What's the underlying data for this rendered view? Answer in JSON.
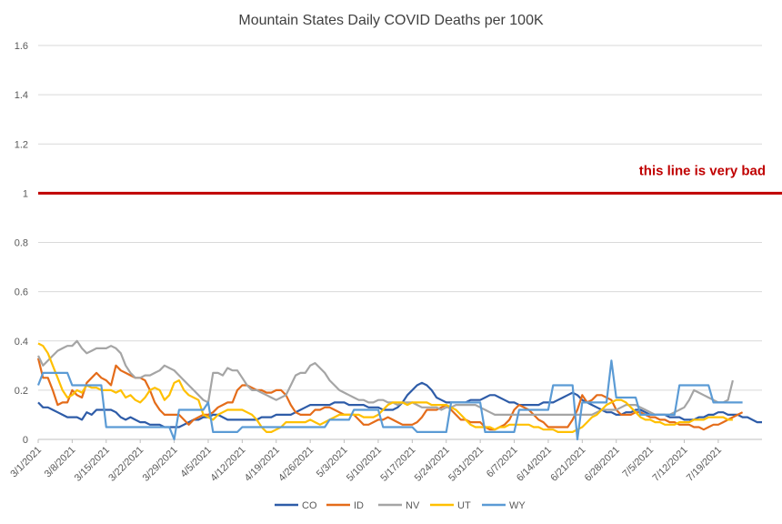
{
  "chart_data": {
    "type": "line",
    "title": "Mountain States Daily COVID Deaths per 100K",
    "xlabel": "",
    "ylabel": "",
    "ylim": [
      0,
      1.6
    ],
    "yticks": [
      0,
      0.2,
      0.4,
      0.6,
      0.8,
      1,
      1.2,
      1.4,
      1.6
    ],
    "grid": true,
    "legend": "bottom",
    "x_start": "3/1/2021",
    "x_tick_labels": [
      "3/1/2021",
      "3/8/2021",
      "3/15/2021",
      "3/22/2021",
      "3/29/2021",
      "4/5/2021",
      "4/12/2021",
      "4/19/2021",
      "4/26/2021",
      "5/3/2021",
      "5/10/2021",
      "5/17/2021",
      "5/24/2021",
      "5/31/2021",
      "6/7/2021",
      "6/14/2021",
      "6/21/2021",
      "6/28/2021",
      "7/5/2021",
      "7/12/2021",
      "7/19/2021"
    ],
    "reference_line": {
      "y": 1,
      "label": "this line is very bad",
      "color": "#c00000"
    },
    "series": [
      {
        "name": "CO",
        "color": "#2e5ca8",
        "values": [
          0.15,
          0.13,
          0.13,
          0.12,
          0.11,
          0.1,
          0.09,
          0.09,
          0.09,
          0.08,
          0.11,
          0.1,
          0.12,
          0.12,
          0.12,
          0.12,
          0.11,
          0.09,
          0.08,
          0.09,
          0.08,
          0.07,
          0.07,
          0.06,
          0.06,
          0.06,
          0.05,
          0.05,
          0.05,
          0.05,
          0.06,
          0.07,
          0.08,
          0.08,
          0.09,
          0.09,
          0.1,
          0.1,
          0.09,
          0.08,
          0.08,
          0.08,
          0.08,
          0.08,
          0.08,
          0.08,
          0.09,
          0.09,
          0.09,
          0.1,
          0.1,
          0.1,
          0.1,
          0.11,
          0.12,
          0.13,
          0.14,
          0.14,
          0.14,
          0.14,
          0.14,
          0.15,
          0.15,
          0.15,
          0.14,
          0.14,
          0.14,
          0.14,
          0.13,
          0.13,
          0.13,
          0.12,
          0.12,
          0.12,
          0.13,
          0.15,
          0.18,
          0.2,
          0.22,
          0.23,
          0.22,
          0.2,
          0.17,
          0.16,
          0.15,
          0.15,
          0.15,
          0.15,
          0.15,
          0.16,
          0.16,
          0.16,
          0.17,
          0.18,
          0.18,
          0.17,
          0.16,
          0.15,
          0.15,
          0.14,
          0.14,
          0.14,
          0.14,
          0.14,
          0.15,
          0.15,
          0.15,
          0.16,
          0.17,
          0.18,
          0.19,
          0.18,
          0.16,
          0.15,
          0.14,
          0.13,
          0.12,
          0.11,
          0.11,
          0.1,
          0.1,
          0.11,
          0.11,
          0.12,
          0.12,
          0.11,
          0.1,
          0.1,
          0.1,
          0.1,
          0.09,
          0.09,
          0.09,
          0.08,
          0.08,
          0.08,
          0.09,
          0.09,
          0.1,
          0.1,
          0.11,
          0.11,
          0.1,
          0.1,
          0.1,
          0.09,
          0.09,
          0.08,
          0.07,
          0.07
        ]
      },
      {
        "name": "ID",
        "color": "#e46c1a",
        "values": [
          0.33,
          0.25,
          0.25,
          0.2,
          0.14,
          0.15,
          0.15,
          0.2,
          0.18,
          0.17,
          0.23,
          0.25,
          0.27,
          0.25,
          0.24,
          0.22,
          0.3,
          0.28,
          0.27,
          0.26,
          0.25,
          0.25,
          0.24,
          0.2,
          0.15,
          0.12,
          0.1,
          0.1,
          0.1,
          0.1,
          0.08,
          0.06,
          0.08,
          0.09,
          0.1,
          0.1,
          0.11,
          0.13,
          0.14,
          0.15,
          0.15,
          0.2,
          0.22,
          0.22,
          0.21,
          0.2,
          0.2,
          0.19,
          0.19,
          0.2,
          0.2,
          0.18,
          0.14,
          0.11,
          0.1,
          0.1,
          0.1,
          0.12,
          0.12,
          0.13,
          0.13,
          0.12,
          0.11,
          0.1,
          0.1,
          0.1,
          0.08,
          0.06,
          0.06,
          0.07,
          0.08,
          0.08,
          0.09,
          0.08,
          0.07,
          0.06,
          0.06,
          0.06,
          0.07,
          0.09,
          0.12,
          0.12,
          0.12,
          0.13,
          0.14,
          0.12,
          0.1,
          0.08,
          0.08,
          0.07,
          0.07,
          0.07,
          0.05,
          0.04,
          0.04,
          0.05,
          0.06,
          0.08,
          0.12,
          0.14,
          0.13,
          0.12,
          0.1,
          0.08,
          0.07,
          0.05,
          0.05,
          0.05,
          0.05,
          0.05,
          0.08,
          0.12,
          0.18,
          0.15,
          0.16,
          0.18,
          0.18,
          0.17,
          0.16,
          0.12,
          0.1,
          0.1,
          0.1,
          0.11,
          0.11,
          0.1,
          0.09,
          0.09,
          0.08,
          0.08,
          0.07,
          0.07,
          0.06,
          0.06,
          0.06,
          0.05,
          0.05,
          0.04,
          0.05,
          0.06,
          0.06,
          0.07,
          0.08,
          0.09,
          0.1,
          0.11
        ]
      },
      {
        "name": "NV",
        "color": "#a5a5a5",
        "values": [
          0.34,
          0.3,
          0.32,
          0.34,
          0.36,
          0.37,
          0.38,
          0.38,
          0.4,
          0.37,
          0.35,
          0.36,
          0.37,
          0.37,
          0.37,
          0.38,
          0.37,
          0.35,
          0.3,
          0.27,
          0.25,
          0.25,
          0.26,
          0.26,
          0.27,
          0.28,
          0.3,
          0.29,
          0.28,
          0.26,
          0.24,
          0.22,
          0.2,
          0.18,
          0.16,
          0.15,
          0.27,
          0.27,
          0.26,
          0.29,
          0.28,
          0.28,
          0.25,
          0.22,
          0.2,
          0.2,
          0.19,
          0.18,
          0.17,
          0.16,
          0.17,
          0.18,
          0.22,
          0.26,
          0.27,
          0.27,
          0.3,
          0.31,
          0.29,
          0.27,
          0.24,
          0.22,
          0.2,
          0.19,
          0.18,
          0.17,
          0.16,
          0.16,
          0.15,
          0.15,
          0.16,
          0.16,
          0.15,
          0.15,
          0.14,
          0.15,
          0.15,
          0.15,
          0.14,
          0.13,
          0.13,
          0.13,
          0.13,
          0.12,
          0.13,
          0.13,
          0.14,
          0.14,
          0.14,
          0.14,
          0.14,
          0.13,
          0.12,
          0.11,
          0.1,
          0.1,
          0.1,
          0.1,
          0.1,
          0.1,
          0.1,
          0.1,
          0.1,
          0.1,
          0.1,
          0.1,
          0.1,
          0.1,
          0.1,
          0.1,
          0.1,
          0.1,
          0.1,
          0.1,
          0.1,
          0.11,
          0.12,
          0.12,
          0.12,
          0.12,
          0.13,
          0.14,
          0.14,
          0.14,
          0.13,
          0.12,
          0.11,
          0.1,
          0.1,
          0.1,
          0.1,
          0.11,
          0.12,
          0.13,
          0.16,
          0.2,
          0.19,
          0.18,
          0.17,
          0.16,
          0.15,
          0.15,
          0.16,
          0.24
        ]
      },
      {
        "name": "UT",
        "color": "#ffc000",
        "values": [
          0.39,
          0.38,
          0.35,
          0.3,
          0.25,
          0.2,
          0.17,
          0.18,
          0.2,
          0.19,
          0.22,
          0.21,
          0.21,
          0.2,
          0.2,
          0.2,
          0.19,
          0.2,
          0.17,
          0.18,
          0.16,
          0.15,
          0.17,
          0.2,
          0.21,
          0.2,
          0.16,
          0.18,
          0.23,
          0.24,
          0.2,
          0.18,
          0.17,
          0.16,
          0.1,
          0.09,
          0.08,
          0.1,
          0.11,
          0.12,
          0.12,
          0.12,
          0.12,
          0.11,
          0.1,
          0.08,
          0.05,
          0.03,
          0.03,
          0.04,
          0.05,
          0.07,
          0.07,
          0.07,
          0.07,
          0.07,
          0.08,
          0.07,
          0.06,
          0.07,
          0.08,
          0.09,
          0.1,
          0.1,
          0.1,
          0.1,
          0.1,
          0.09,
          0.09,
          0.09,
          0.1,
          0.12,
          0.14,
          0.15,
          0.15,
          0.15,
          0.14,
          0.15,
          0.15,
          0.15,
          0.15,
          0.14,
          0.14,
          0.14,
          0.14,
          0.13,
          0.12,
          0.1,
          0.08,
          0.06,
          0.05,
          0.05,
          0.05,
          0.05,
          0.04,
          0.05,
          0.05,
          0.06,
          0.06,
          0.06,
          0.06,
          0.06,
          0.05,
          0.05,
          0.04,
          0.04,
          0.04,
          0.03,
          0.03,
          0.03,
          0.03,
          0.04,
          0.05,
          0.07,
          0.09,
          0.1,
          0.12,
          0.14,
          0.15,
          0.16,
          0.16,
          0.15,
          0.13,
          0.11,
          0.09,
          0.08,
          0.08,
          0.07,
          0.07,
          0.06,
          0.06,
          0.06,
          0.07,
          0.07,
          0.07,
          0.08,
          0.08,
          0.08,
          0.09,
          0.09,
          0.09,
          0.09,
          0.08,
          0.08
        ]
      },
      {
        "name": "WY",
        "color": "#5b9bd5",
        "values": [
          0.22,
          0.27,
          0.27,
          0.27,
          0.27,
          0.27,
          0.27,
          0.22,
          0.22,
          0.22,
          0.22,
          0.22,
          0.22,
          0.22,
          0.05,
          0.05,
          0.05,
          0.05,
          0.05,
          0.05,
          0.05,
          0.05,
          0.05,
          0.05,
          0.05,
          0.05,
          0.05,
          0.05,
          0.0,
          0.12,
          0.12,
          0.12,
          0.12,
          0.12,
          0.12,
          0.15,
          0.03,
          0.03,
          0.03,
          0.03,
          0.03,
          0.03,
          0.05,
          0.05,
          0.05,
          0.05,
          0.05,
          0.05,
          0.05,
          0.05,
          0.05,
          0.05,
          0.05,
          0.05,
          0.05,
          0.05,
          0.05,
          0.05,
          0.05,
          0.05,
          0.08,
          0.08,
          0.08,
          0.08,
          0.08,
          0.12,
          0.12,
          0.12,
          0.12,
          0.12,
          0.12,
          0.05,
          0.05,
          0.05,
          0.05,
          0.05,
          0.05,
          0.05,
          0.03,
          0.03,
          0.03,
          0.03,
          0.03,
          0.03,
          0.03,
          0.15,
          0.15,
          0.15,
          0.15,
          0.15,
          0.15,
          0.15,
          0.03,
          0.03,
          0.03,
          0.03,
          0.03,
          0.03,
          0.03,
          0.12,
          0.12,
          0.12,
          0.12,
          0.12,
          0.12,
          0.12,
          0.22,
          0.22,
          0.22,
          0.22,
          0.22,
          0.0,
          0.15,
          0.15,
          0.15,
          0.15,
          0.15,
          0.15,
          0.32,
          0.17,
          0.17,
          0.17,
          0.17,
          0.17,
          0.1,
          0.1,
          0.1,
          0.1,
          0.1,
          0.1,
          0.1,
          0.1,
          0.22,
          0.22,
          0.22,
          0.22,
          0.22,
          0.22,
          0.22,
          0.15,
          0.15,
          0.15,
          0.15,
          0.15,
          0.15,
          0.15
        ]
      }
    ]
  }
}
